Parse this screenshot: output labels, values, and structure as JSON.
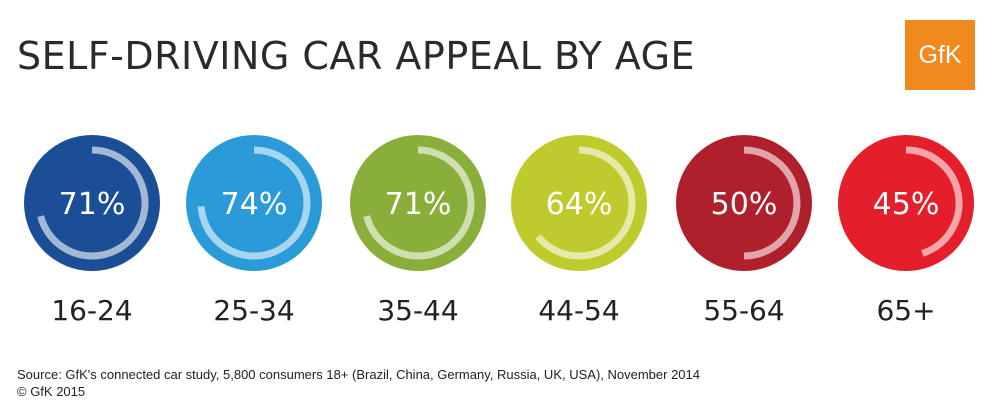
{
  "title": "SELF-DRIVING CAR APPEAL BY AGE",
  "logo": {
    "text": "GfK",
    "color": "#f08a1e"
  },
  "footer": {
    "source": "Source: GfK's connected car study, 5,800 consumers 18+ (Brazil, China, Germany, Russia, UK, USA), November 2014",
    "copyright": "© GfK 2015"
  },
  "chart_data": {
    "type": "pie",
    "categories": [
      "16-24",
      "25-34",
      "35-44",
      "44-54",
      "55-64",
      "65+"
    ],
    "values": [
      71,
      74,
      71,
      64,
      50,
      45
    ],
    "value_labels": [
      "71%",
      "74%",
      "71%",
      "64%",
      "50%",
      "45%"
    ],
    "colors": [
      "#1a4e96",
      "#2a9ad8",
      "#8aae3a",
      "#bfcb2c",
      "#b0202c",
      "#e41e2a"
    ],
    "unit": "%"
  }
}
